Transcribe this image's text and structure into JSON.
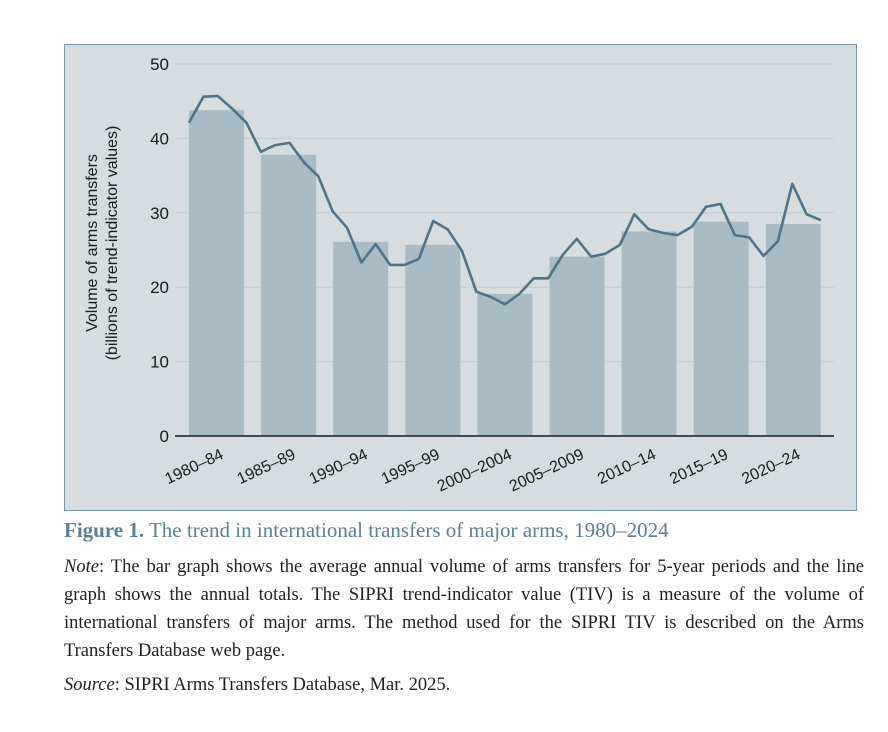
{
  "chart_data": {
    "type": "bar",
    "title": "",
    "xlabel": "",
    "ylabel": [
      "Volume of arms transfers",
      "(billions of trend-indicator values)"
    ],
    "ylim": [
      0,
      50
    ],
    "yticks": [
      0,
      10,
      20,
      30,
      40,
      50
    ],
    "grid": true,
    "categories": [
      "1980–84",
      "1985–89",
      "1990–94",
      "1995–99",
      "2000–2004",
      "2005–2009",
      "2010–14",
      "2015–19",
      "2020–24"
    ],
    "series": [
      {
        "name": "5-year average annual volume",
        "type": "bar",
        "values": [
          43.8,
          37.8,
          26.1,
          25.7,
          19.1,
          24.1,
          27.5,
          28.8,
          28.5
        ]
      },
      {
        "name": "Annual totals",
        "type": "line",
        "x": [
          1980,
          1981,
          1982,
          1983,
          1984,
          1985,
          1986,
          1987,
          1988,
          1989,
          1990,
          1991,
          1992,
          1993,
          1994,
          1995,
          1996,
          1997,
          1998,
          1999,
          2000,
          2001,
          2002,
          2003,
          2004,
          2005,
          2006,
          2007,
          2008,
          2009,
          2010,
          2011,
          2012,
          2013,
          2014,
          2015,
          2016,
          2017,
          2018,
          2019,
          2020,
          2021,
          2022,
          2023,
          2024
        ],
        "values": [
          42.1,
          45.6,
          45.7,
          44.0,
          42.1,
          38.2,
          39.1,
          39.4,
          36.8,
          34.9,
          30.2,
          28.0,
          23.3,
          25.8,
          23.0,
          23.0,
          23.8,
          28.9,
          27.8,
          24.9,
          19.4,
          18.7,
          17.7,
          19.1,
          21.2,
          21.2,
          24.3,
          26.5,
          24.1,
          24.5,
          25.7,
          29.8,
          27.8,
          27.3,
          27.0,
          28.1,
          30.8,
          31.2,
          27.0,
          26.7,
          24.2,
          26.2,
          33.9,
          29.8,
          29.0
        ]
      }
    ],
    "colors": {
      "bar": "#a9bcc6",
      "line": "#4f7487",
      "grid": "#c2ccd1",
      "axis": "#1a1a1a",
      "panel": "#d5dde1"
    }
  },
  "caption": {
    "figure_label": "Figure 1.",
    "figure_title": "The trend in international transfers of major arms, 1980–2024",
    "note_label": "Note",
    "note_text": ": The bar graph shows the average annual volume of arms transfers for 5-year periods and the line graph shows the annual totals. The SIPRI trend-indicator value (TIV) is a measure of the volume of international transfers of major arms. The method used for the SIPRI TIV is described on the Arms Transfers Database web page.",
    "source_label": "Source",
    "source_text": ": SIPRI Arms Transfers Database, Mar. 2025."
  }
}
